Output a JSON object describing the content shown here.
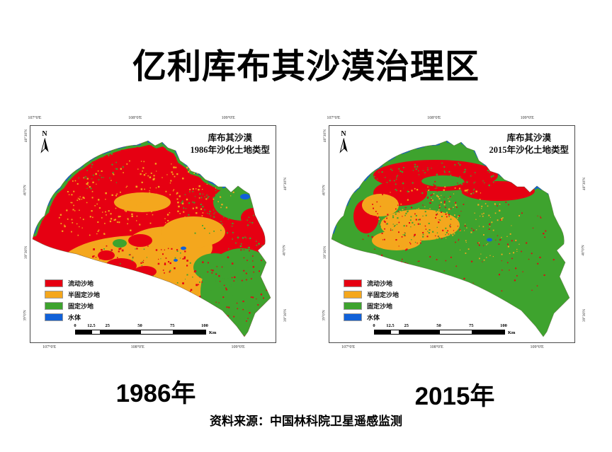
{
  "page": {
    "title": "亿利库布其沙漠治理区",
    "source": "资料来源：中国林科院卫星遥感监测"
  },
  "legend": {
    "items": [
      {
        "label": "流动沙地",
        "color": "#e60012"
      },
      {
        "label": "半固定沙地",
        "color": "#f4a71d"
      },
      {
        "label": "固定沙地",
        "color": "#3ea32e"
      },
      {
        "label": "水体",
        "color": "#1161d8"
      }
    ]
  },
  "scalebar": {
    "ticks": [
      "0",
      "12.5",
      "25",
      "50",
      "75",
      "100"
    ],
    "unit": "Km"
  },
  "maps": [
    {
      "name": "kubuqi-1986",
      "title_line1": "库布其沙漠",
      "title_line2": "1986年沙化土地类型",
      "year_label": "1986年",
      "north_label": "N",
      "lon_ticks": [
        "107°0'E",
        "108°0'E",
        "109°0'E"
      ],
      "lat_ticks": [
        "40°30'N",
        "40°0'N",
        "39°30'N",
        "39°0'N"
      ]
    },
    {
      "name": "kubuqi-2015",
      "title_line1": "库布其沙漠",
      "title_line2": "2015年沙化土地类型",
      "year_label": "2015年",
      "north_label": "N",
      "lon_ticks": [
        "107°0'E",
        "108°0'E",
        "109°0'E"
      ],
      "lat_ticks": [
        "40°30'N",
        "40°0'N",
        "39°30'N",
        "39°0'N"
      ]
    }
  ]
}
